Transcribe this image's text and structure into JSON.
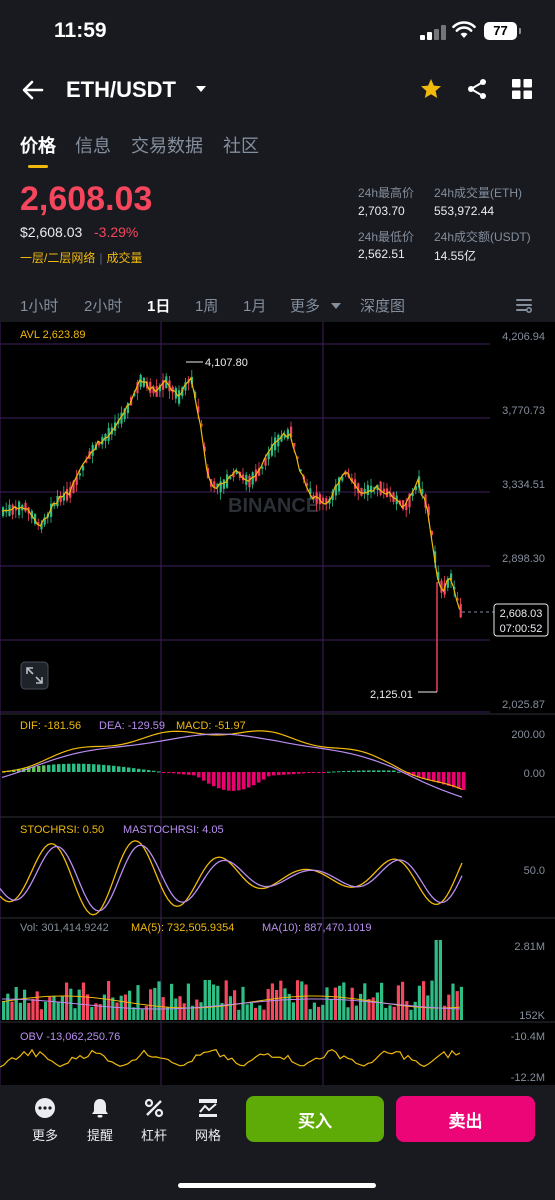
{
  "status_bar": {
    "time": "11:59",
    "battery": "77"
  },
  "header": {
    "pair": "ETH/USDT"
  },
  "tabs": [
    "价格",
    "信息",
    "交易数据",
    "社区"
  ],
  "price": {
    "last": "2,608.03",
    "usd": "$2,608.03",
    "change": "-3.29%",
    "tag1": "一层/二层网络",
    "tag2": "成交量"
  },
  "stats": {
    "high_label": "24h最高价",
    "high": "2,703.70",
    "vol_eth_label": "24h成交量(ETH)",
    "vol_eth": "553,972.44",
    "low_label": "24h最低价",
    "low": "2,562.51",
    "vol_usdt_label": "24h成交额(USDT)",
    "vol_usdt": "14.55亿"
  },
  "intervals": [
    "1小时",
    "2小时",
    "1日",
    "1周",
    "1月",
    "更多",
    "深度图"
  ],
  "chart": {
    "avl": "AVL 2,623.89",
    "axis": [
      "4,206.94",
      "3,770.73",
      "3,334.51",
      "2,898.30",
      "2,025.87"
    ],
    "high_marker": "4,107.80",
    "low_marker": "2,125.01",
    "current_price": "2,608.03",
    "countdown": "07:00:52",
    "watermark": "BINANCE",
    "macd": {
      "dif": "DIF: -181.56",
      "dea": "DEA: -129.59",
      "macd": "MACD: -51.97",
      "axis": [
        "200.00",
        "0.00"
      ]
    },
    "stoch": {
      "stochrsi": "STOCHRSI: 0.50",
      "mastochrsi": "MASTOCHRSI: 4.05",
      "axis": [
        "50.0"
      ]
    },
    "vol": {
      "vol": "Vol: 301,414.9242",
      "ma5": "MA(5): 732,505.9354",
      "ma10": "MA(10): 887,470.1019",
      "axis": [
        "2.81M",
        "152K"
      ]
    },
    "obv": {
      "obv": "OBV -13,062,250.76",
      "axis": [
        "-10.4M",
        "-12.2M"
      ]
    },
    "colors": {
      "up": "#2ebd85",
      "down": "#f6465d",
      "yellow": "#f0b90b",
      "purple": "#b78ef0",
      "grid": "#3d1f5c"
    }
  },
  "bottom": {
    "more": "更多",
    "alert": "提醒",
    "leverage": "杠杆",
    "grid": "网格",
    "buy": "买入",
    "sell": "卖出"
  }
}
